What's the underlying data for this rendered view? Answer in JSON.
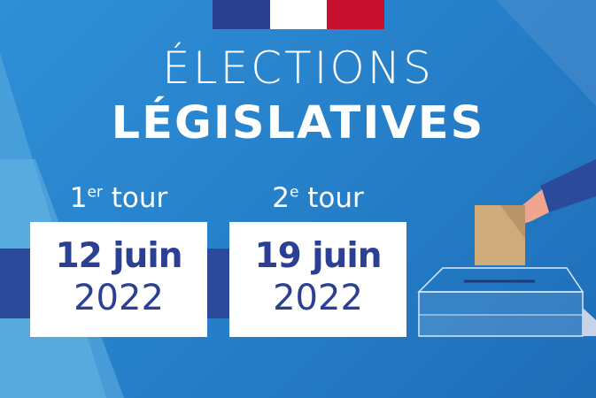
{
  "flag_colors": [
    "#2a3f8f",
    "#ffffff",
    "#c8102e"
  ],
  "title": {
    "line1": "ÉLECTIONS",
    "line2": "LÉGISLATIVES"
  },
  "rounds": [
    {
      "number": "1",
      "suffix": "er",
      "label": " tour",
      "day": "12 juin",
      "year": "2022"
    },
    {
      "number": "2",
      "suffix": "e",
      "label": " tour",
      "day": "19 juin",
      "year": "2022"
    }
  ],
  "colors": {
    "background": "#2680c9",
    "accent": "#2b3f94"
  }
}
